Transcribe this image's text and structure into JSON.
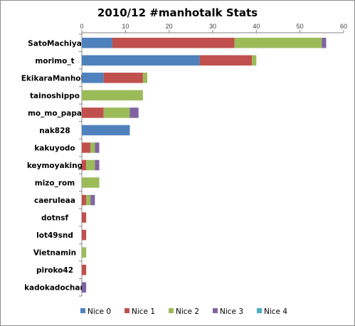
{
  "chart_data": {
    "type": "bar",
    "orientation": "horizontal",
    "stacked": true,
    "title": "2010/12 #manhotalk Stats",
    "xlabel": "",
    "ylabel": "",
    "xlim": [
      0,
      60
    ],
    "x_ticks": [
      "0",
      "10",
      "20",
      "30",
      "40",
      "50",
      "60"
    ],
    "x_axis_position": "top",
    "grid": false,
    "legend_position": "bottom",
    "categories": [
      "SatoMachiya",
      "morimo_t",
      "EkikaraManhole",
      "tainoshippo",
      "mo_mo_papa",
      "nak828",
      "kakuyodo",
      "keymoyaking",
      "mizo_rom",
      "caeruleaa",
      "dotnsf",
      "lot49snd",
      "Vietnamin",
      "piroko42",
      "kadokadochan"
    ],
    "series": [
      {
        "name": "Nice 0",
        "color": "#4f81bd",
        "values": [
          7,
          27,
          5,
          0,
          0,
          11,
          0,
          0,
          0,
          0,
          0,
          0,
          0,
          0,
          0
        ]
      },
      {
        "name": "Nice 1",
        "color": "#c0504d",
        "values": [
          28,
          12,
          9,
          0,
          5,
          0,
          2,
          1,
          0,
          1,
          1,
          1,
          0,
          1,
          0
        ]
      },
      {
        "name": "Nice 2",
        "color": "#9bbb59",
        "values": [
          20,
          1,
          1,
          14,
          6,
          0,
          1,
          2,
          4,
          1,
          0,
          0,
          1,
          0,
          0
        ]
      },
      {
        "name": "Nice 3",
        "color": "#8064a2",
        "values": [
          1,
          0,
          0,
          0,
          2,
          0,
          1,
          1,
          0,
          1,
          0,
          0,
          0,
          0,
          1
        ]
      },
      {
        "name": "Nice 4",
        "color": "#4bacc6",
        "values": [
          0,
          0,
          0,
          0,
          0,
          0,
          0,
          0,
          0,
          0,
          0,
          0,
          0,
          0,
          0
        ]
      }
    ]
  }
}
